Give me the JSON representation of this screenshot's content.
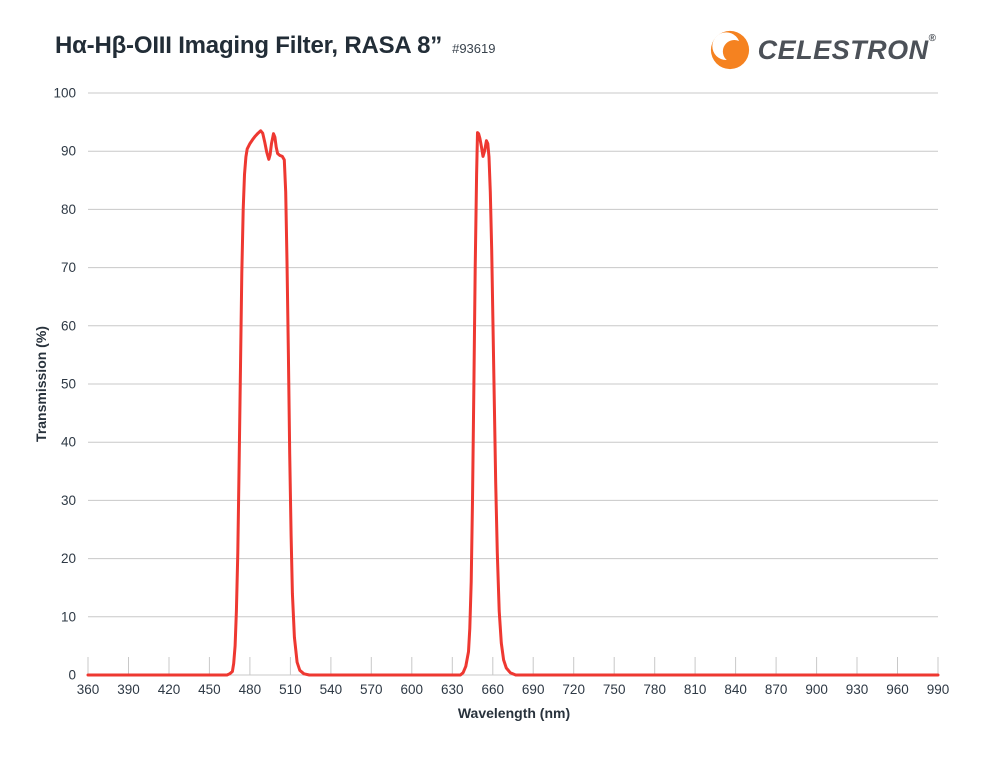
{
  "header": {
    "title": "Hα-Hβ-OIII Imaging Filter, RASA 8”",
    "part_number": "#93619",
    "brand": "CELESTRON",
    "brand_mark": "®"
  },
  "colors": {
    "curve_red": "#ee3831",
    "brand_orange": "#f58220",
    "text_dark": "#2e3945",
    "logo_text": "#4c5158",
    "grid_gray": "#c8c8c8"
  },
  "chart_data": {
    "type": "line",
    "title": "Hα-Hβ-OIII Imaging Filter, RASA 8”",
    "xlabel": "Wavelength (nm)",
    "ylabel": "Transmission (%)",
    "xlim": [
      360,
      990
    ],
    "ylim": [
      0,
      100
    ],
    "xtick_step": 30,
    "xticks": [
      360,
      390,
      420,
      450,
      480,
      510,
      540,
      570,
      600,
      630,
      660,
      690,
      720,
      750,
      780,
      810,
      840,
      870,
      900,
      930,
      960,
      990
    ],
    "yticks": [
      0,
      10,
      20,
      30,
      40,
      50,
      60,
      70,
      80,
      90,
      100
    ],
    "grid": "horizontal",
    "legend": "none",
    "series": [
      {
        "name": "Transmission",
        "color": "#ee3831",
        "points": [
          [
            360,
            0
          ],
          [
            455,
            0
          ],
          [
            463,
            0
          ],
          [
            465,
            0.2
          ],
          [
            467,
            0.6
          ],
          [
            468,
            2
          ],
          [
            469,
            5
          ],
          [
            470,
            11
          ],
          [
            471,
            21
          ],
          [
            472,
            36
          ],
          [
            473,
            53
          ],
          [
            474,
            69
          ],
          [
            475,
            80
          ],
          [
            476,
            86
          ],
          [
            477,
            89
          ],
          [
            478,
            90.4
          ],
          [
            480,
            91.3
          ],
          [
            482,
            92
          ],
          [
            484,
            92.6
          ],
          [
            486,
            93.1
          ],
          [
            488,
            93.5
          ],
          [
            489.5,
            93.1
          ],
          [
            491,
            91.6
          ],
          [
            492.5,
            89.8
          ],
          [
            494,
            88.6
          ],
          [
            495,
            89.4
          ],
          [
            496,
            91.3
          ],
          [
            497.5,
            93
          ],
          [
            498.5,
            92.4
          ],
          [
            499.5,
            90.7
          ],
          [
            500.5,
            89.6
          ],
          [
            502,
            89.3
          ],
          [
            504,
            89.1
          ],
          [
            505.5,
            88.5
          ],
          [
            506.5,
            83
          ],
          [
            507.5,
            71
          ],
          [
            508.5,
            55
          ],
          [
            509.5,
            38
          ],
          [
            510.5,
            24
          ],
          [
            511.5,
            14
          ],
          [
            513,
            6.5
          ],
          [
            515,
            2.2
          ],
          [
            517,
            0.8
          ],
          [
            520,
            0.2
          ],
          [
            524,
            0
          ],
          [
            630,
            0
          ],
          [
            636,
            0
          ],
          [
            638,
            0.4
          ],
          [
            640,
            1.5
          ],
          [
            642,
            4
          ],
          [
            643,
            8
          ],
          [
            644,
            16
          ],
          [
            645,
            30
          ],
          [
            646,
            50
          ],
          [
            647,
            70
          ],
          [
            648,
            86
          ],
          [
            648.7,
            93.2
          ],
          [
            649.5,
            93
          ],
          [
            650.5,
            92.2
          ],
          [
            651.5,
            90.9
          ],
          [
            652.8,
            89.1
          ],
          [
            654,
            90.1
          ],
          [
            655.3,
            91.8
          ],
          [
            656.3,
            91.3
          ],
          [
            657.2,
            89
          ],
          [
            658.2,
            83
          ],
          [
            659.2,
            73
          ],
          [
            660.2,
            60
          ],
          [
            661.2,
            46
          ],
          [
            662.2,
            33
          ],
          [
            663.4,
            21
          ],
          [
            664.8,
            11
          ],
          [
            666.3,
            5.5
          ],
          [
            668,
            2.6
          ],
          [
            670,
            1.2
          ],
          [
            673,
            0.4
          ],
          [
            677,
            0
          ],
          [
            990,
            0
          ]
        ]
      }
    ]
  }
}
